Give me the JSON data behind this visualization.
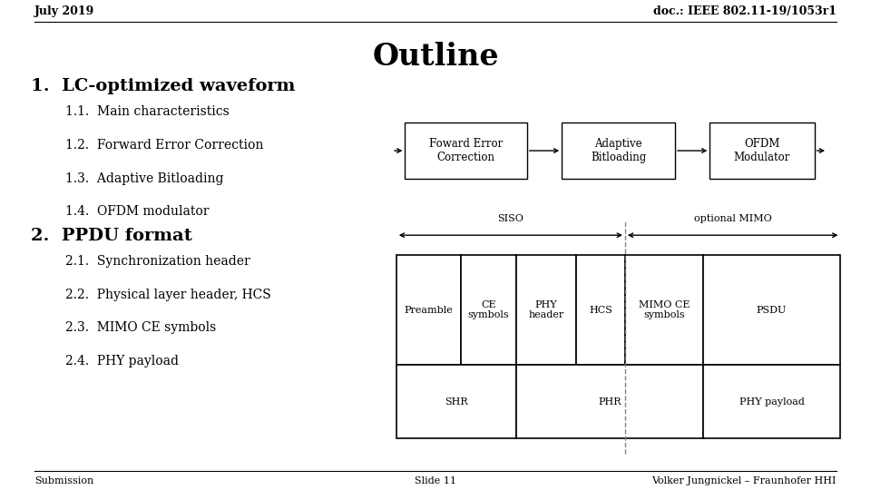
{
  "title": "Outline",
  "header_left": "July 2019",
  "header_right": "doc.: IEEE 802.11-19/1053r1",
  "footer_left": "Submission",
  "footer_center": "Slide 11",
  "footer_right": "Volker Jungnickel – Fraunhofer HHI",
  "section1": "1.  LC-optimized waveform",
  "items1": [
    "1.1.  Main characteristics",
    "1.2.  Forward Error Correction",
    "1.3.  Adaptive Bitloading",
    "1.4.  OFDM modulator"
  ],
  "section2": "2.  PPDU format",
  "items2": [
    "2.1.  Synchronization header",
    "2.2.  Physical layer header, HCS",
    "2.3.  MIMO CE symbols",
    "2.4.  PHY payload"
  ],
  "flow_boxes": [
    "Foward Error\nCorrection",
    "Adaptive\nBitloading",
    "OFDM\nModulator"
  ],
  "ppdu_top_cells": [
    "Preamble",
    "CE\nsymbols",
    "PHY\nheader",
    "HCS",
    "MIMO CE\nsymbols",
    "PSDU"
  ],
  "ppdu_bot_cells": [
    "SHR",
    "PHR",
    "PHY payload"
  ],
  "siso_label": "SISO",
  "mimo_label": "optional MIMO",
  "bg_color": "#ffffff",
  "text_color": "#000000"
}
